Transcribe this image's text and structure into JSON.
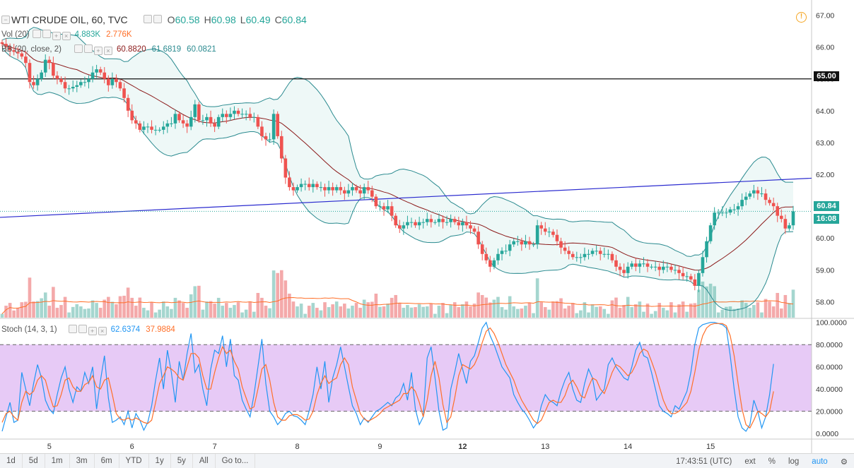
{
  "header": {
    "symbol": "WTI CRUDE OIL, 60, TVC",
    "o_label": "O",
    "o_val": "60.58",
    "h_label": "H",
    "h_val": "60.98",
    "l_label": "L",
    "l_val": "60.49",
    "c_label": "C",
    "c_val": "60.84"
  },
  "vol_legend": {
    "name": "Vol (20)",
    "v1": "4.883K",
    "v2": "2.776K"
  },
  "bb_legend": {
    "name": "BB (20, close, 2)",
    "v1": "60.8820",
    "v2": "61.6819",
    "v3": "60.0821"
  },
  "stoch_legend": {
    "name": "Stoch (14, 3, 1)",
    "k": "62.6374",
    "d": "37.9884"
  },
  "price_tags": {
    "level": "65.00",
    "last": "60.84",
    "countdown": "16:08"
  },
  "alert_icon": "clock-alert-icon",
  "bottom_bar": {
    "ranges": [
      "1d",
      "5d",
      "1m",
      "3m",
      "6m",
      "YTD",
      "1y",
      "5y",
      "All"
    ],
    "goto": "Go to...",
    "time": "17:43:51 (UTC)",
    "ext": "ext",
    "pct": "%",
    "log": "log",
    "auto": "auto",
    "settings_icon": "gear-icon"
  },
  "colors": {
    "up": "#26a69a",
    "down": "#ef5350",
    "up_vol": "#a5d6cf",
    "down_vol": "#f4a9aa",
    "bb_band": "#2a8a8f",
    "bb_basis": "#8b1a1a",
    "trend": "#2b2bcf",
    "stoch_k": "#2196f3",
    "stoch_d": "#ff6f28",
    "stoch_bg": "#e7caf6"
  },
  "chart_data": {
    "type": "candlestick",
    "title": "WTI CRUDE OIL, 60, TVC",
    "x_ticks": [
      "5",
      "6",
      "7",
      "8",
      "9",
      "12",
      "13",
      "14",
      "15"
    ],
    "price_axis": {
      "ylim": [
        57.5,
        67.3
      ],
      "ticks": [
        "67.00",
        "66.00",
        "65.00",
        "64.00",
        "63.00",
        "62.00",
        "61.00",
        "60.00",
        "59.00",
        "58.00"
      ]
    },
    "stoch_axis": {
      "ylim": [
        -5,
        103
      ],
      "ticks": [
        "100.0000",
        "80.0000",
        "60.0000",
        "40.0000",
        "20.0000",
        "0.0000"
      ],
      "bands": [
        20,
        80
      ]
    },
    "horizontal_line": 65.0,
    "trendline": {
      "start": [
        "4",
        60.65
      ],
      "end": [
        "15",
        61.88
      ]
    },
    "close_series": [
      66.1,
      66.0,
      65.9,
      65.85,
      65.8,
      65.7,
      65.5,
      64.9,
      64.8,
      65.0,
      65.2,
      65.6,
      65.5,
      65.1,
      65.0,
      64.9,
      64.7,
      64.7,
      64.75,
      64.8,
      64.9,
      64.9,
      65.0,
      65.2,
      65.3,
      65.2,
      65.0,
      64.8,
      65.0,
      64.9,
      64.7,
      64.4,
      64.0,
      63.7,
      63.6,
      63.4,
      63.5,
      63.5,
      63.4,
      63.4,
      63.4,
      63.5,
      63.6,
      63.6,
      63.9,
      63.7,
      63.6,
      63.5,
      63.8,
      64.2,
      63.7,
      63.7,
      63.8,
      63.6,
      63.5,
      63.8,
      63.9,
      63.8,
      63.9,
      64.0,
      63.9,
      63.9,
      63.9,
      63.8,
      63.8,
      63.5,
      63.2,
      63.1,
      63.1,
      63.9,
      63.2,
      62.5,
      61.9,
      61.6,
      61.5,
      61.6,
      61.7,
      61.7,
      61.6,
      61.7,
      61.6,
      61.6,
      61.5,
      61.6,
      61.5,
      61.6,
      61.5,
      61.4,
      61.5,
      61.6,
      61.5,
      61.4,
      61.6,
      61.5,
      61.3,
      61.0,
      61.0,
      60.9,
      61.0,
      60.7,
      60.4,
      60.3,
      60.4,
      60.5,
      60.5,
      60.4,
      60.5,
      60.5,
      60.6,
      60.5,
      60.5,
      60.6,
      60.5,
      60.5,
      60.6,
      60.5,
      60.4,
      60.5,
      60.4,
      60.3,
      60.2,
      59.8,
      59.5,
      59.3,
      59.1,
      59.3,
      59.5,
      59.6,
      59.6,
      59.8,
      59.9,
      59.9,
      59.8,
      59.9,
      59.8,
      59.8,
      60.4,
      60.3,
      60.2,
      60.2,
      60.1,
      59.9,
      59.7,
      59.6,
      59.5,
      59.4,
      59.4,
      59.4,
      59.5,
      59.5,
      59.6,
      59.6,
      59.5,
      59.5,
      59.5,
      59.3,
      59.1,
      59.0,
      58.9,
      59.1,
      59.2,
      59.1,
      59.2,
      59.2,
      59.1,
      59.1,
      59.1,
      59.0,
      59.1,
      59.1,
      59.0,
      59.0,
      58.9,
      58.8,
      58.8,
      58.7,
      58.5,
      58.9,
      59.4,
      59.9,
      60.4,
      60.8,
      60.8,
      60.8,
      60.8,
      60.9,
      60.9,
      61.0,
      61.2,
      61.3,
      61.4,
      61.5,
      61.4,
      61.4,
      61.2,
      61.1,
      61.0,
      60.7,
      60.6,
      60.3,
      60.4,
      60.84
    ],
    "volume_range": [
      0,
      5000
    ],
    "stoch_k_values": [
      2,
      15,
      28,
      10,
      12,
      55,
      40,
      25,
      45,
      62,
      50,
      30,
      22,
      18,
      35,
      50,
      60,
      40,
      28,
      42,
      38,
      55,
      45,
      60,
      22,
      48,
      70,
      32,
      10,
      12,
      15,
      8,
      20,
      5,
      18,
      12,
      3,
      10,
      25,
      48,
      68,
      40,
      75,
      55,
      28,
      65,
      48,
      72,
      90,
      55,
      62,
      40,
      25,
      58,
      75,
      72,
      88,
      60,
      85,
      52,
      48,
      30,
      22,
      15,
      35,
      60,
      85,
      45,
      20,
      15,
      8,
      12,
      18,
      20,
      16,
      15,
      12,
      8,
      20,
      35,
      60,
      40,
      65,
      28,
      50,
      62,
      78,
      60,
      42,
      25,
      18,
      8,
      14,
      10,
      15,
      20,
      22,
      25,
      28,
      25,
      32,
      35,
      45,
      30,
      55,
      22,
      8,
      15,
      68,
      78,
      50,
      20,
      3,
      5,
      40,
      55,
      72,
      58,
      45,
      65,
      70,
      82,
      95,
      100,
      88,
      80,
      70,
      60,
      55,
      50,
      35,
      28,
      22,
      18,
      12,
      5,
      10,
      25,
      35,
      30,
      28,
      25,
      38,
      48,
      55,
      40,
      30,
      28,
      45,
      58,
      50,
      30,
      35,
      40,
      62,
      68,
      60,
      55,
      50,
      48,
      60,
      75,
      82,
      70,
      68,
      55,
      40,
      25,
      20,
      18,
      15,
      25,
      22,
      30,
      38,
      55,
      80,
      95,
      98,
      99,
      100,
      100,
      99,
      98,
      95,
      70,
      40,
      15,
      5,
      2,
      8,
      30,
      20,
      5,
      15,
      35,
      62.6374
    ],
    "stoch_d_values": [
      10,
      18,
      20,
      15,
      12,
      28,
      38,
      35,
      38,
      48,
      52,
      48,
      35,
      24,
      25,
      35,
      48,
      50,
      42,
      38,
      38,
      44,
      46,
      52,
      42,
      40,
      48,
      50,
      35,
      18,
      13,
      12,
      14,
      12,
      14,
      12,
      10,
      9,
      12,
      28,
      45,
      52,
      60,
      58,
      55,
      50,
      48,
      60,
      72,
      72,
      68,
      52,
      40,
      40,
      55,
      68,
      78,
      72,
      75,
      65,
      58,
      42,
      32,
      22,
      24,
      40,
      58,
      62,
      48,
      28,
      15,
      12,
      12,
      16,
      17,
      17,
      15,
      12,
      13,
      20,
      35,
      45,
      52,
      45,
      48,
      50,
      62,
      68,
      62,
      42,
      30,
      18,
      13,
      11,
      13,
      15,
      18,
      22,
      24,
      26,
      28,
      30,
      36,
      36,
      42,
      38,
      28,
      15,
      30,
      52,
      65,
      50,
      26,
      10,
      15,
      32,
      52,
      62,
      60,
      58,
      62,
      70,
      82,
      92,
      95,
      90,
      82,
      72,
      62,
      55,
      48,
      38,
      30,
      24,
      18,
      12,
      9,
      12,
      20,
      28,
      30,
      28,
      28,
      34,
      44,
      48,
      42,
      34,
      32,
      42,
      50,
      48,
      40,
      36,
      45,
      55,
      62,
      60,
      56,
      52,
      55,
      62,
      72,
      76,
      74,
      65,
      55,
      42,
      30,
      22,
      18,
      18,
      20,
      24,
      28,
      38,
      55,
      75,
      88,
      95,
      98,
      99,
      99,
      99,
      97,
      88,
      70,
      45,
      22,
      8,
      5,
      12,
      20,
      18,
      15,
      20,
      37.9884
    ]
  }
}
